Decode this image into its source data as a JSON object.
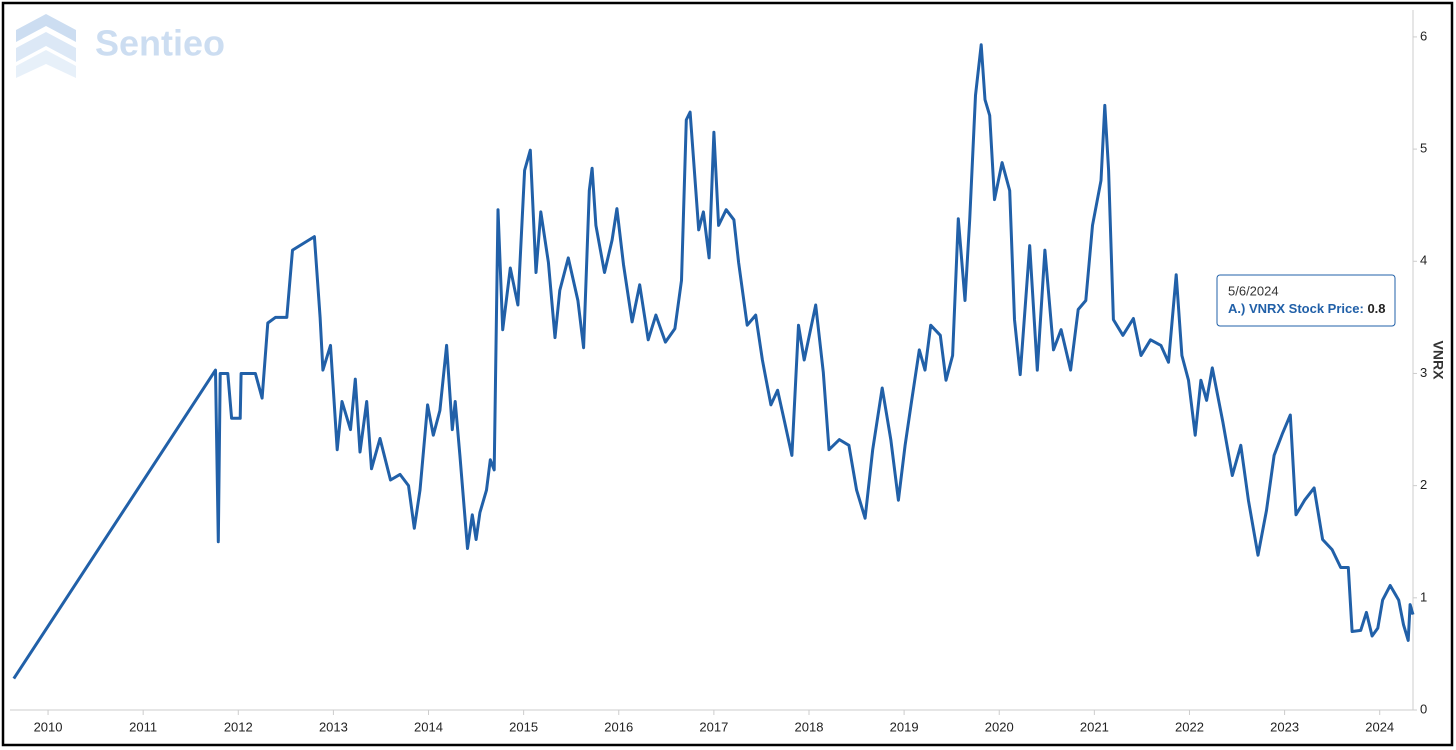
{
  "logo": "Sentieo",
  "tooltip": {
    "date": "5/6/2024",
    "label": "A.) VNRX Stock Price:",
    "value": 0.8
  },
  "chart_data": {
    "type": "line",
    "y_axis_label": "VNRX",
    "color": "#2160a8",
    "grid": false,
    "xlim": [
      2009.6,
      2024.35
    ],
    "xticks": [
      2010,
      2011,
      2012,
      2013,
      2014,
      2015,
      2016,
      2017,
      2018,
      2019,
      2020,
      2021,
      2022,
      2023,
      2024
    ],
    "ylim": [
      0,
      6.24
    ],
    "yticks": [
      0,
      1,
      2,
      3,
      4,
      5,
      6
    ],
    "x": [
      2009.64,
      2011.76,
      2011.79,
      2011.81,
      2011.89,
      2011.93,
      2012.02,
      2012.03,
      2012.18,
      2012.25,
      2012.31,
      2012.39,
      2012.51,
      2012.57,
      2012.8,
      2012.86,
      2012.89,
      2012.97,
      2013.04,
      2013.09,
      2013.18,
      2013.23,
      2013.28,
      2013.35,
      2013.4,
      2013.49,
      2013.6,
      2013.7,
      2013.79,
      2013.85,
      2013.91,
      2013.99,
      2014.05,
      2014.12,
      2014.19,
      2014.25,
      2014.28,
      2014.33,
      2014.41,
      2014.46,
      2014.5,
      2014.54,
      2014.61,
      2014.65,
      2014.69,
      2014.73,
      2014.78,
      2014.86,
      2014.94,
      2015.01,
      2015.07,
      2015.13,
      2015.18,
      2015.26,
      2015.33,
      2015.38,
      2015.47,
      2015.57,
      2015.63,
      2015.69,
      2015.72,
      2015.76,
      2015.85,
      2015.93,
      2015.98,
      2016.05,
      2016.14,
      2016.22,
      2016.31,
      2016.39,
      2016.49,
      2016.59,
      2016.66,
      2016.71,
      2016.75,
      2016.84,
      2016.89,
      2016.95,
      2017.0,
      2017.05,
      2017.13,
      2017.21,
      2017.26,
      2017.35,
      2017.44,
      2017.51,
      2017.6,
      2017.67,
      2017.74,
      2017.82,
      2017.89,
      2017.95,
      2018.07,
      2018.15,
      2018.21,
      2018.32,
      2018.42,
      2018.5,
      2018.59,
      2018.67,
      2018.77,
      2018.86,
      2018.94,
      2019.01,
      2019.08,
      2019.16,
      2019.22,
      2019.28,
      2019.38,
      2019.44,
      2019.51,
      2019.57,
      2019.64,
      2019.69,
      2019.75,
      2019.81,
      2019.85,
      2019.9,
      2019.95,
      2020.03,
      2020.11,
      2020.16,
      2020.22,
      2020.32,
      2020.4,
      2020.48,
      2020.57,
      2020.65,
      2020.75,
      2020.83,
      2020.91,
      2020.98,
      2021.07,
      2021.11,
      2021.15,
      2021.2,
      2021.3,
      2021.41,
      2021.49,
      2021.59,
      2021.7,
      2021.78,
      2021.86,
      2021.92,
      2021.99,
      2022.06,
      2022.12,
      2022.18,
      2022.24,
      2022.35,
      2022.45,
      2022.54,
      2022.62,
      2022.72,
      2022.81,
      2022.89,
      2022.98,
      2023.06,
      2023.12,
      2023.21,
      2023.31,
      2023.4,
      2023.5,
      2023.59,
      2023.67,
      2023.71,
      2023.8,
      2023.86,
      2023.92,
      2023.98,
      2024.03,
      2024.11,
      2024.2,
      2024.25,
      2024.3,
      2024.32,
      2024.35
    ],
    "series": [
      {
        "name": "A.) VNRX Stock Price",
        "color": "#2160a8",
        "values": [
          0.28,
          3.03,
          1.5,
          3.0,
          3.0,
          2.6,
          2.6,
          3.0,
          3.0,
          2.78,
          3.45,
          3.5,
          3.5,
          4.1,
          4.22,
          3.5,
          3.03,
          3.25,
          2.32,
          2.75,
          2.5,
          2.95,
          2.3,
          2.75,
          2.15,
          2.42,
          2.05,
          2.1,
          2.0,
          1.62,
          1.96,
          2.72,
          2.45,
          2.67,
          3.25,
          2.5,
          2.75,
          2.27,
          1.44,
          1.74,
          1.52,
          1.76,
          1.96,
          2.23,
          2.14,
          4.46,
          3.39,
          3.94,
          3.61,
          4.81,
          4.99,
          3.9,
          4.44,
          3.99,
          3.32,
          3.74,
          4.03,
          3.65,
          3.23,
          4.63,
          4.83,
          4.32,
          3.9,
          4.19,
          4.47,
          3.97,
          3.46,
          3.79,
          3.3,
          3.52,
          3.28,
          3.4,
          3.83,
          5.26,
          5.33,
          4.28,
          4.44,
          4.03,
          5.15,
          4.32,
          4.46,
          4.37,
          3.99,
          3.43,
          3.52,
          3.12,
          2.72,
          2.85,
          2.58,
          2.27,
          3.43,
          3.12,
          3.61,
          3.01,
          2.32,
          2.41,
          2.36,
          1.96,
          1.71,
          2.32,
          2.87,
          2.41,
          1.87,
          2.36,
          2.76,
          3.21,
          3.03,
          3.43,
          3.34,
          2.94,
          3.16,
          4.38,
          3.65,
          4.37,
          5.48,
          5.93,
          5.44,
          5.3,
          4.55,
          4.88,
          4.63,
          3.48,
          2.99,
          4.14,
          3.03,
          4.1,
          3.21,
          3.39,
          3.03,
          3.57,
          3.65,
          4.32,
          4.72,
          5.39,
          4.81,
          3.48,
          3.34,
          3.49,
          3.16,
          3.3,
          3.25,
          3.1,
          3.88,
          3.16,
          2.94,
          2.45,
          2.94,
          2.76,
          3.05,
          2.57,
          2.09,
          2.36,
          1.87,
          1.38,
          1.78,
          2.27,
          2.47,
          2.63,
          1.74,
          1.87,
          1.98,
          1.52,
          1.43,
          1.27,
          1.27,
          0.7,
          0.71,
          0.87,
          0.66,
          0.73,
          0.98,
          1.11,
          0.98,
          0.76,
          0.62,
          0.94,
          0.85
        ]
      }
    ]
  }
}
